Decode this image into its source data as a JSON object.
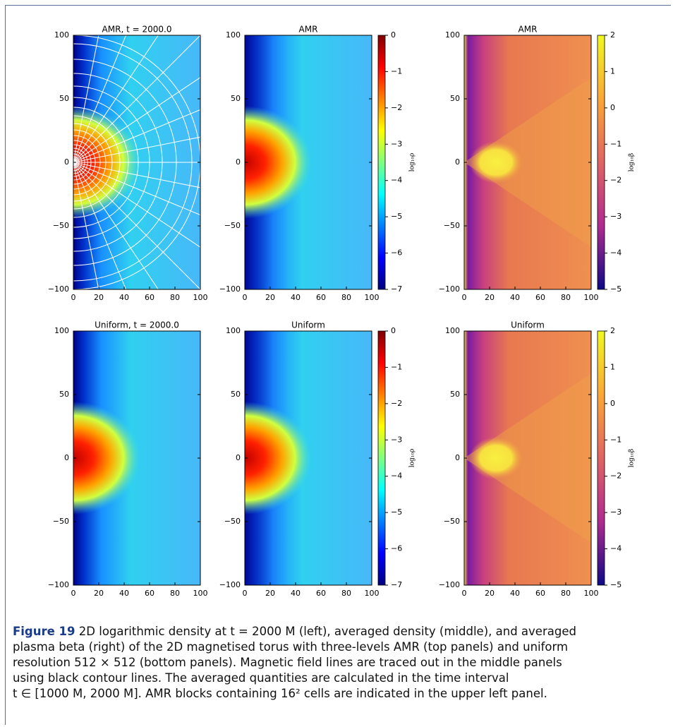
{
  "figure": {
    "panels": [
      {
        "title": "AMR, t = 2000.0",
        "kind": "density",
        "amr_grid": true
      },
      {
        "title": "AMR",
        "kind": "avg-density"
      },
      {
        "title": "AMR",
        "kind": "beta"
      },
      {
        "title": "Uniform, t = 2000.0",
        "kind": "density"
      },
      {
        "title": "Uniform",
        "kind": "avg-density"
      },
      {
        "title": "Uniform",
        "kind": "beta"
      }
    ],
    "xticks": [
      "0",
      "20",
      "40",
      "60",
      "80",
      "100"
    ],
    "yticks": [
      "100",
      "50",
      "0",
      "−50",
      "−100"
    ],
    "colorbars": {
      "avg-density": {
        "label": "log₁₀ρ",
        "ticks": [
          "0",
          "−1",
          "−2",
          "−3",
          "−4",
          "−5",
          "−6",
          "−7"
        ]
      },
      "beta": {
        "label": "log₁₀β",
        "ticks": [
          "2",
          "1",
          "0",
          "−1",
          "−2",
          "−3",
          "−4",
          "−5"
        ]
      }
    }
  },
  "caption": {
    "label": "Figure 19",
    "lines": [
      "2D logarithmic density at t = 2000 M (left), averaged density (middle), and averaged",
      "plasma beta (right) of the 2D magnetised torus with three-levels AMR (top panels) and uniform",
      "resolution 512 × 512 (bottom panels). Magnetic field lines are traced out in the middle panels",
      "using black contour lines. The averaged quantities are calculated in the time interval",
      "t ∈ [1000 M, 2000 M]. AMR blocks containing 16² cells are indicated in the upper left panel."
    ]
  }
}
